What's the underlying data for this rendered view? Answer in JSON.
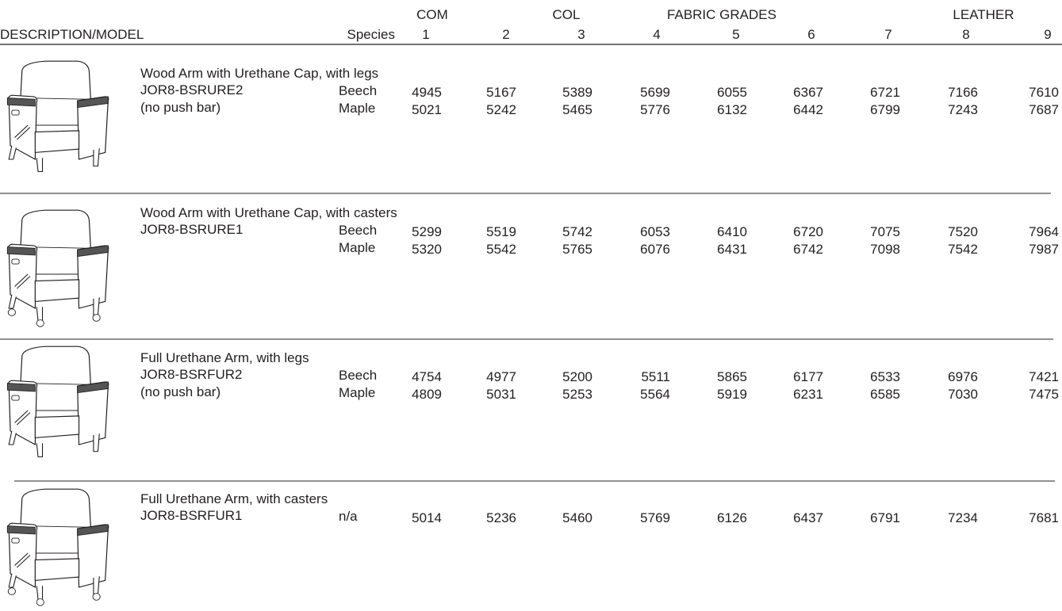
{
  "header": {
    "groups": [
      "COM",
      "COL",
      "FABRIC GRADES",
      "LEATHER"
    ],
    "description_label": "DESCRIPTION/MODEL",
    "species_label": "Species",
    "grades": [
      "1",
      "2",
      "3",
      "4",
      "5",
      "6",
      "7",
      "8",
      "9"
    ]
  },
  "sections": [
    {
      "description": "Wood Arm with Urethane Cap, with legs",
      "model": "JOR8-BSRURE2",
      "note": "(no push bar)",
      "rows": [
        {
          "species": "Beech",
          "prices": [
            "4945",
            "5167",
            "5389",
            "5699",
            "6055",
            "6367",
            "6721",
            "7166",
            "7610"
          ]
        },
        {
          "species": "Maple",
          "prices": [
            "5021",
            "5242",
            "5465",
            "5776",
            "6132",
            "6442",
            "6799",
            "7243",
            "7687"
          ]
        }
      ]
    },
    {
      "description": "Wood Arm with Urethane Cap, with casters",
      "model": "JOR8-BSRURE1",
      "rows": [
        {
          "species": "Beech",
          "prices": [
            "5299",
            "5519",
            "5742",
            "6053",
            "6410",
            "6720",
            "7075",
            "7520",
            "7964"
          ]
        },
        {
          "species": "Maple",
          "prices": [
            "5320",
            "5542",
            "5765",
            "6076",
            "6431",
            "6742",
            "7098",
            "7542",
            "7987"
          ]
        }
      ]
    },
    {
      "description": "Full Urethane Arm, with legs",
      "model": "JOR8-BSRFUR2",
      "note": "(no push bar)",
      "rows": [
        {
          "species": "Beech",
          "prices": [
            "4754",
            "4977",
            "5200",
            "5511",
            "5865",
            "6177",
            "6533",
            "6976",
            "7421"
          ]
        },
        {
          "species": "Maple",
          "prices": [
            "4809",
            "5031",
            "5253",
            "5564",
            "5919",
            "6231",
            "6585",
            "7030",
            "7475"
          ]
        }
      ]
    },
    {
      "description": "Full Urethane Arm, with casters",
      "model": "JOR8-BSRFUR1",
      "rows": [
        {
          "species": "n/a",
          "prices": [
            "5014",
            "5236",
            "5460",
            "5769",
            "6126",
            "6437",
            "6791",
            "7234",
            "7681"
          ]
        }
      ]
    }
  ]
}
